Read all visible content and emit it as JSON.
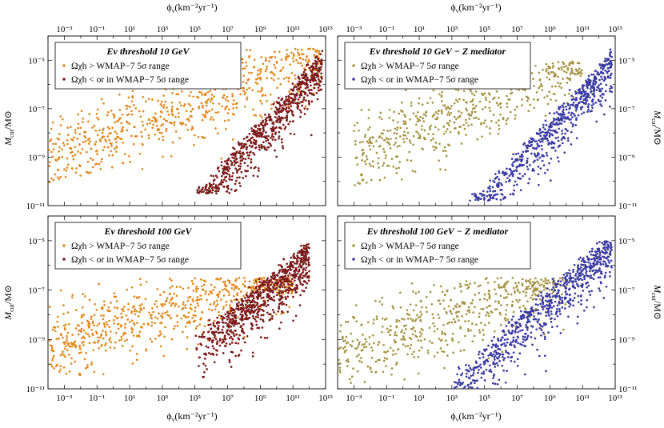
{
  "figure": {
    "top_xlabel": "ϕ",
    "top_xlabel_sub": "ν",
    "top_xlabel_unit": "(km⁻²yr⁻¹)",
    "bottom_xlabel": "ϕ",
    "bottom_xlabel_sub": "ν",
    "bottom_xlabel_unit": "(km⁻²yr⁻¹)",
    "ylabel": "M",
    "ylabel_sub": "cut",
    "ylabel_unit": "/M⊙"
  },
  "chart_data": [
    {
      "type": "scatter",
      "title": "Eν threshold 10 GeV",
      "x_scale": "log",
      "y_scale": "log",
      "xlim": [
        0.0001,
        10000000000000.0
      ],
      "ylim": [
        1e-11,
        0.0001
      ],
      "x_ticks": [
        "10⁻³",
        "10⁻¹",
        "10¹",
        "10³",
        "10⁵",
        "10⁷",
        "10⁹",
        "10¹¹",
        "10¹³"
      ],
      "y_ticks": [
        "10⁻¹¹",
        "10⁻⁹",
        "10⁻⁷",
        "10⁻⁵"
      ],
      "legend_position": "top-left",
      "series": [
        {
          "name": "Ωχh > WMAP−7 5σ range",
          "color": "#e08a1e",
          "distribution": {
            "x_log_range": [
              -4,
              12.8
            ],
            "y_log_range": [
              -10.2,
              -4.5
            ],
            "trend_slope": 0.25,
            "count": 700
          }
        },
        {
          "name": "Ωχh < or in WMAP−7 5σ range",
          "color": "#7a1a1a",
          "distribution": {
            "x_log_range": [
              5,
              12.8
            ],
            "y_log_range": [
              -10.5,
              -4.5
            ],
            "trend_slope": 0.75,
            "count": 700
          }
        }
      ]
    },
    {
      "type": "scatter",
      "title": "Eν threshold 10 GeV − Z mediator",
      "x_scale": "log",
      "y_scale": "log",
      "xlim": [
        0.0001,
        10000000000000.0
      ],
      "ylim": [
        1e-11,
        0.0001
      ],
      "x_ticks": [
        "10⁻³",
        "10⁻¹",
        "10¹",
        "10³",
        "10⁵",
        "10⁷",
        "10⁹",
        "10¹¹",
        "10¹³"
      ],
      "y_ticks": [
        "10⁻¹¹",
        "10⁻⁹",
        "10⁻⁷",
        "10⁻⁵"
      ],
      "legend_position": "top-left",
      "series": [
        {
          "name": "Ωχh > WMAP−7 5σ range",
          "color": "#a69545",
          "distribution": {
            "x_log_range": [
              -3,
              11
            ],
            "y_log_range": [
              -10.2,
              -5
            ],
            "trend_slope": 0.28,
            "count": 550
          }
        },
        {
          "name": "Ωχh < or in WMAP−7 5σ range",
          "color": "#3a3aa0",
          "distribution": {
            "x_log_range": [
              4,
              12.8
            ],
            "y_log_range": [
              -10.8,
              -4.5
            ],
            "trend_slope": 0.72,
            "count": 650
          }
        }
      ]
    },
    {
      "type": "scatter",
      "title": "Eν threshold 100 GeV",
      "x_scale": "log",
      "y_scale": "log",
      "xlim": [
        0.0001,
        10000000000000.0
      ],
      "ylim": [
        1e-11,
        0.0001
      ],
      "x_ticks": [
        "10⁻³",
        "10⁻¹",
        "10¹",
        "10³",
        "10⁵",
        "10⁷",
        "10⁹",
        "10¹¹",
        "10¹³"
      ],
      "y_ticks": [
        "10⁻¹¹",
        "10⁻⁹",
        "10⁻⁷",
        "10⁻⁵"
      ],
      "legend_position": "top-left",
      "series": [
        {
          "name": "Ωχh > WMAP−7 5σ range",
          "color": "#e08a1e",
          "distribution": {
            "x_log_range": [
              -4,
              11
            ],
            "y_log_range": [
              -10.5,
              -6.5
            ],
            "trend_slope": 0.2,
            "count": 650
          }
        },
        {
          "name": "Ωχh < or in WMAP−7 5σ range",
          "color": "#7a1a1a",
          "distribution": {
            "x_log_range": [
              5,
              12
            ],
            "y_log_range": [
              -10.8,
              -4.7
            ],
            "trend_slope": 0.55,
            "count": 800
          }
        }
      ]
    },
    {
      "type": "scatter",
      "title": "Eν threshold 100 GeV − Z mediator",
      "x_scale": "log",
      "y_scale": "log",
      "xlim": [
        0.0001,
        10000000000000.0
      ],
      "ylim": [
        1e-11,
        0.0001
      ],
      "x_ticks": [
        "10⁻³",
        "10⁻¹",
        "10¹",
        "10³",
        "10⁵",
        "10⁷",
        "10⁹",
        "10¹¹",
        "10¹³"
      ],
      "y_ticks": [
        "10⁻¹¹",
        "10⁻⁹",
        "10⁻⁷",
        "10⁻⁵"
      ],
      "legend_position": "top-left",
      "series": [
        {
          "name": "Ωχh > WMAP−7 5σ range",
          "color": "#a69545",
          "distribution": {
            "x_log_range": [
              -4,
              10
            ],
            "y_log_range": [
              -10.8,
              -6.5
            ],
            "trend_slope": 0.22,
            "count": 550
          }
        },
        {
          "name": "Ωχh < or in WMAP−7 5σ range",
          "color": "#3a3aa0",
          "distribution": {
            "x_log_range": [
              3,
              12.8
            ],
            "y_log_range": [
              -11,
              -5
            ],
            "trend_slope": 0.6,
            "count": 750
          }
        }
      ]
    }
  ]
}
